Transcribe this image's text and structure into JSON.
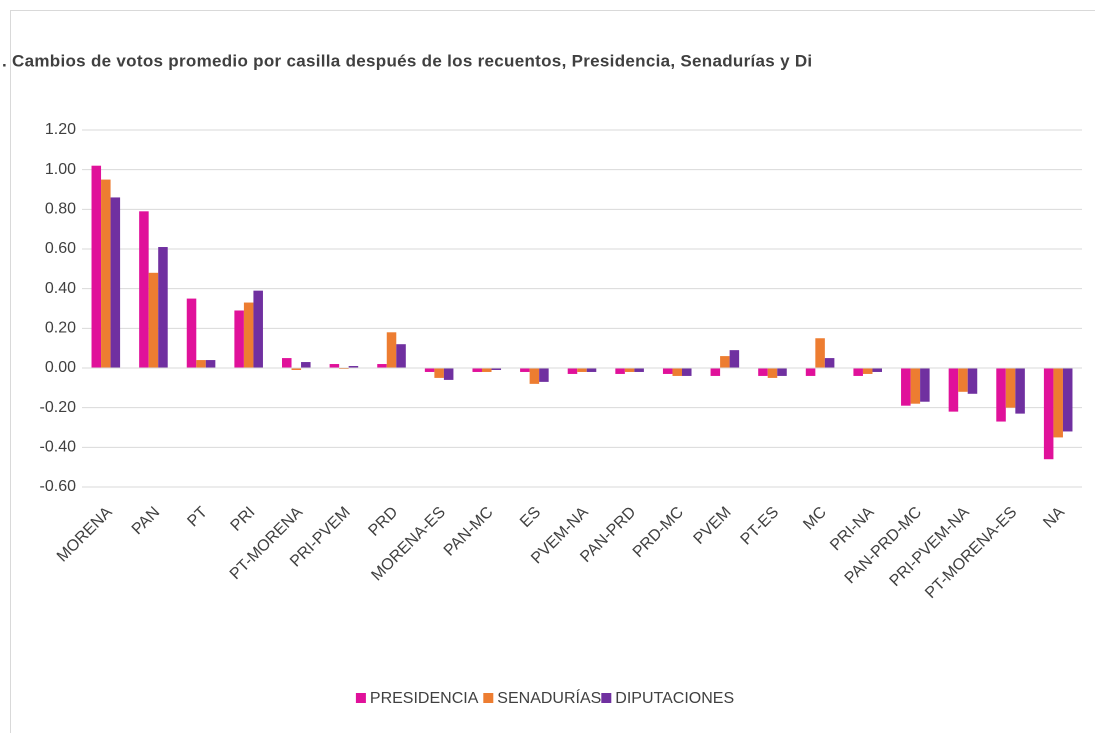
{
  "chart_data": {
    "type": "bar",
    "title": ". Cambios de votos promedio por casilla  después de los recuentos, Presidencia, Senadurías y Di",
    "categories": [
      "MORENA",
      "PAN",
      "PT",
      "PRI",
      "PT-MORENA",
      "PRI-PVEM",
      "PRD",
      "MORENA-ES",
      "PAN-MC",
      "ES",
      "PVEM-NA",
      "PAN-PRD",
      "PRD-MC",
      "PVEM",
      "PT-ES",
      "MC",
      "PRI-NA",
      "PAN-PRD-MC",
      "PRI-PVEM-NA",
      "PT-MORENA-ES",
      "NA"
    ],
    "series": [
      {
        "name": "PRESIDENCIA",
        "color": "#e0119a",
        "values": [
          1.02,
          0.79,
          0.35,
          0.29,
          0.05,
          0.02,
          0.02,
          -0.02,
          -0.02,
          -0.02,
          -0.03,
          -0.03,
          -0.03,
          -0.04,
          -0.04,
          -0.04,
          -0.04,
          -0.19,
          -0.22,
          -0.27,
          -0.46
        ]
      },
      {
        "name": "SENADURÍAS",
        "color": "#ed7d31",
        "values": [
          0.95,
          0.48,
          0.04,
          0.33,
          -0.01,
          -0.005,
          0.18,
          -0.05,
          -0.02,
          -0.08,
          -0.02,
          -0.02,
          -0.04,
          0.06,
          -0.05,
          0.15,
          -0.03,
          -0.18,
          -0.12,
          -0.2,
          -0.35
        ]
      },
      {
        "name": "DIPUTACIONES",
        "color": "#7030a0",
        "values": [
          0.86,
          0.61,
          0.04,
          0.39,
          0.03,
          0.01,
          0.12,
          -0.06,
          -0.01,
          -0.07,
          -0.02,
          -0.02,
          -0.04,
          0.09,
          -0.04,
          0.05,
          -0.02,
          -0.17,
          -0.13,
          -0.23,
          -0.32
        ]
      }
    ],
    "ylim": [
      -0.6,
      1.2
    ],
    "yticks": [
      {
        "value": -0.6,
        "label": "-0.60"
      },
      {
        "value": -0.4,
        "label": "-0.40"
      },
      {
        "value": -0.2,
        "label": "-0.20"
      },
      {
        "value": 0,
        "label": "0.00"
      },
      {
        "value": 0.2,
        "label": "0.20"
      },
      {
        "value": 0.4,
        "label": "0.40"
      },
      {
        "value": 0.6,
        "label": "0.60"
      },
      {
        "value": 0.8,
        "label": "0.80"
      },
      {
        "value": 1.0,
        "label": "1.00"
      },
      {
        "value": 1.2,
        "label": "1.20"
      }
    ],
    "grid": true,
    "legend": "bottom"
  }
}
